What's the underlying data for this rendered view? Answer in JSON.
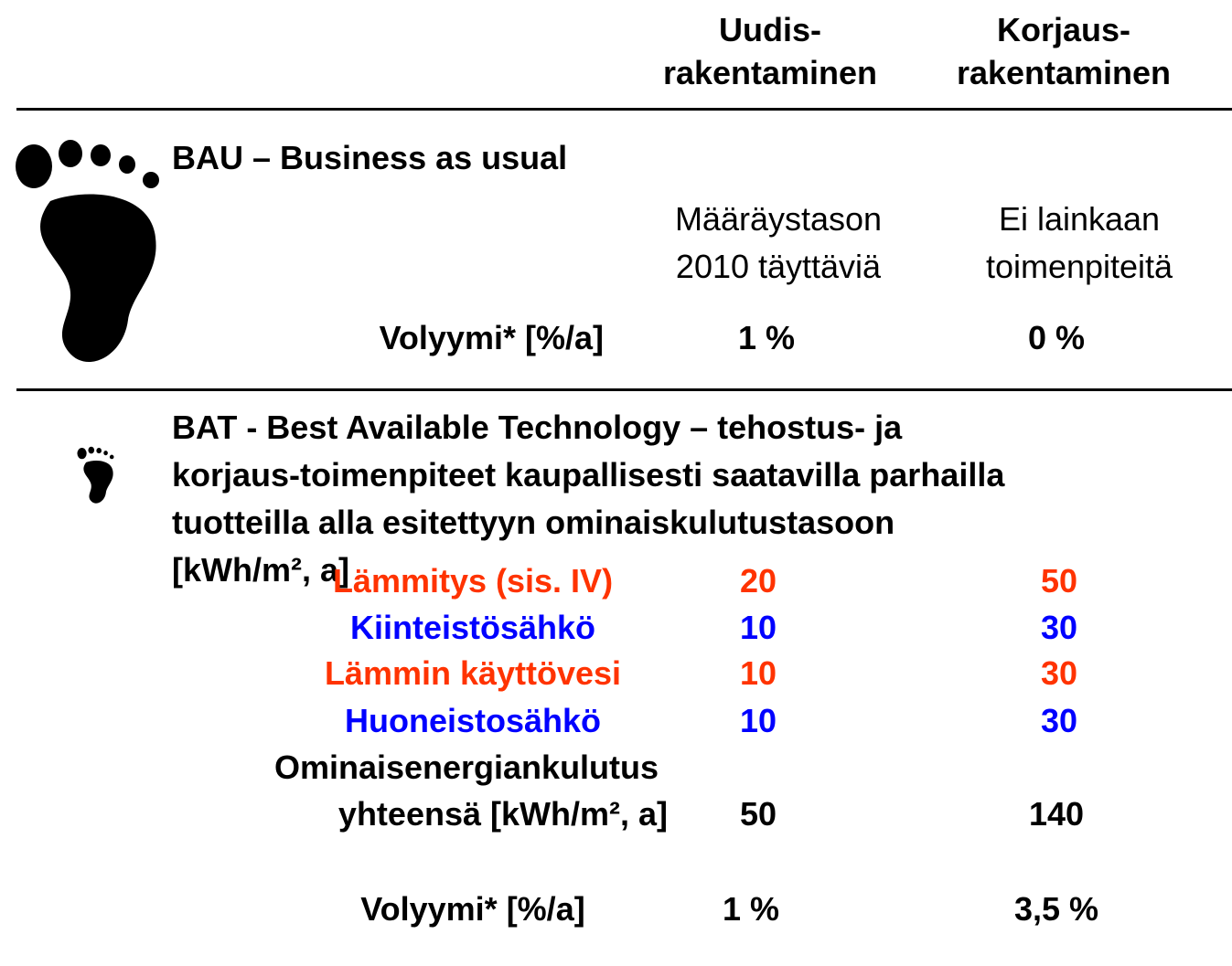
{
  "header": {
    "columns": [
      [
        "Uudis-",
        "rakentaminen"
      ],
      [
        "Korjaus-",
        "rakentaminen"
      ]
    ]
  },
  "bau": {
    "title": "BAU – Business as usual",
    "descriptions": [
      [
        "Määräystason",
        "2010 täyttäviä"
      ],
      [
        "Ei lainkaan",
        "toimenpiteitä"
      ]
    ],
    "volume_label": "Volyymi* [%/a]",
    "volume": [
      "1 %",
      "0 %"
    ]
  },
  "bat": {
    "title": [
      "BAT - Best Available Technology – tehostus- ja",
      "korjaus-toimenpiteet kaupallisesti saatavilla parhailla",
      "tuotteilla alla esitettyyn ominaiskulutustasoon",
      "[kWh/m², a]"
    ],
    "rows": [
      {
        "label": "Lämmitys (sis. IV)",
        "color": "#ff3300",
        "values": [
          20,
          50
        ]
      },
      {
        "label": "Kiinteistösähkö",
        "color": "#0000ff",
        "values": [
          10,
          30
        ]
      },
      {
        "label": "Lämmin käyttövesi",
        "color": "#ff3300",
        "values": [
          10,
          30
        ]
      },
      {
        "label": "Huoneistosähkö",
        "color": "#0000ff",
        "values": [
          10,
          30
        ]
      }
    ],
    "total_label": [
      "Ominaisenergiankulutus",
      "yhteensä [kWh/m², a]"
    ],
    "total": [
      50,
      140
    ],
    "volume_label": "Volyymi* [%/a]",
    "volume": [
      "1 %",
      "3,5 %"
    ]
  }
}
